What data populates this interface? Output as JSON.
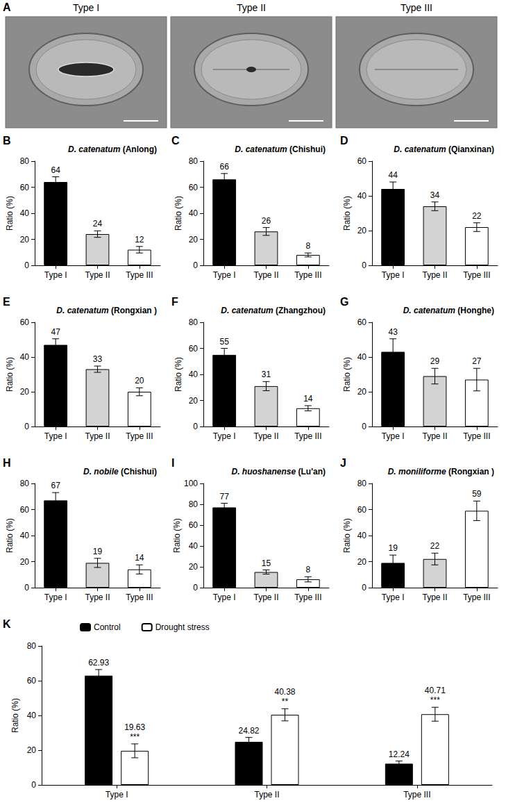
{
  "image_panel": {
    "panel": "A",
    "titles": [
      "Type I",
      "Type II",
      "Type III"
    ]
  },
  "chart_data": [
    {
      "panel": "B",
      "type": "bar",
      "title": "D. catenatum",
      "subtitle": "(Anlong)",
      "y_label": "Ratio (%)",
      "categories": [
        "Type I",
        "Type II",
        "Type III"
      ],
      "values": [
        64,
        24,
        12
      ],
      "errors": [
        4,
        2.5,
        2.5
      ],
      "colors": [
        "#000000",
        "#d3d3d3",
        "#ffffff"
      ],
      "ylim": [
        0,
        80
      ],
      "yticks": [
        0,
        20,
        40,
        60,
        80
      ],
      "data_labels": true,
      "grid": false
    },
    {
      "panel": "C",
      "type": "bar",
      "title": "D. catenatum",
      "subtitle": "(Chishui)",
      "y_label": "Ratio (%)",
      "categories": [
        "Type I",
        "Type II",
        "Type III"
      ],
      "values": [
        66,
        26,
        8
      ],
      "errors": [
        4.5,
        3,
        1.5
      ],
      "colors": [
        "#000000",
        "#d3d3d3",
        "#ffffff"
      ],
      "ylim": [
        0,
        80
      ],
      "yticks": [
        0,
        20,
        40,
        60,
        80
      ],
      "data_labels": true,
      "grid": false
    },
    {
      "panel": "D",
      "type": "bar",
      "title": "D. catenatum",
      "subtitle": "(Qianxinan)",
      "y_label": "Ratio (%)",
      "categories": [
        "Type I",
        "Type II",
        "Type III"
      ],
      "values": [
        44,
        34,
        22
      ],
      "errors": [
        4,
        2.5,
        2.5
      ],
      "colors": [
        "#000000",
        "#d3d3d3",
        "#ffffff"
      ],
      "ylim": [
        0,
        60
      ],
      "yticks": [
        0,
        20,
        40,
        60
      ],
      "data_labels": true,
      "grid": false
    },
    {
      "panel": "E",
      "type": "bar",
      "title": "D. catenatum",
      "subtitle": "(Rongxian )",
      "y_label": "Ratio (%)",
      "categories": [
        "Type I",
        "Type II",
        "Type III"
      ],
      "values": [
        47,
        33,
        20
      ],
      "errors": [
        3.5,
        1.8,
        2.3
      ],
      "colors": [
        "#000000",
        "#d3d3d3",
        "#ffffff"
      ],
      "ylim": [
        0,
        60
      ],
      "yticks": [
        0,
        20,
        40,
        60
      ],
      "data_labels": true,
      "grid": false
    },
    {
      "panel": "F",
      "type": "bar",
      "title": "D. catenatum",
      "subtitle": "(Zhangzhou)",
      "y_label": "Ratio (%)",
      "categories": [
        "Type I",
        "Type II",
        "Type III"
      ],
      "values": [
        55,
        31,
        14
      ],
      "errors": [
        5,
        3.5,
        2
      ],
      "colors": [
        "#000000",
        "#d3d3d3",
        "#ffffff"
      ],
      "ylim": [
        0,
        80
      ],
      "yticks": [
        0,
        20,
        40,
        60,
        80
      ],
      "data_labels": true,
      "grid": false
    },
    {
      "panel": "G",
      "type": "bar",
      "title": "D. catenatum",
      "subtitle": "(Honghe)",
      "y_label": "Ratio (%)",
      "categories": [
        "Type I",
        "Type II",
        "Type III"
      ],
      "values": [
        43,
        29,
        27
      ],
      "errors": [
        7.5,
        4.5,
        6.5
      ],
      "colors": [
        "#000000",
        "#d3d3d3",
        "#ffffff"
      ],
      "ylim": [
        0,
        60
      ],
      "yticks": [
        0,
        20,
        40,
        60
      ],
      "data_labels": true,
      "grid": false
    },
    {
      "panel": "H",
      "type": "bar",
      "title": "D. nobile",
      "subtitle": "(Chishui)",
      "y_label": "Ratio (%)",
      "categories": [
        "Type I",
        "Type II",
        "Type III"
      ],
      "values": [
        67,
        19,
        14
      ],
      "errors": [
        6,
        3.5,
        3.5
      ],
      "colors": [
        "#000000",
        "#d3d3d3",
        "#ffffff"
      ],
      "ylim": [
        0,
        80
      ],
      "yticks": [
        0,
        20,
        40,
        60,
        80
      ],
      "data_labels": true,
      "grid": false
    },
    {
      "panel": "I",
      "type": "bar",
      "title": "D. huoshanense",
      "subtitle": "(Lu'an)",
      "y_label": "Ratio (%)",
      "categories": [
        "Type I",
        "Type II",
        "Type III"
      ],
      "values": [
        77,
        15,
        8
      ],
      "errors": [
        4,
        2,
        2.5
      ],
      "colors": [
        "#000000",
        "#d3d3d3",
        "#ffffff"
      ],
      "ylim": [
        0,
        100
      ],
      "yticks": [
        0,
        20,
        40,
        60,
        80,
        100
      ],
      "data_labels": true,
      "grid": false
    },
    {
      "panel": "J",
      "type": "bar",
      "title": "D. moniliforme",
      "subtitle": "(Rongxian )",
      "y_label": "Ratio (%)",
      "categories": [
        "Type I",
        "Type II",
        "Type III"
      ],
      "values": [
        19,
        22,
        59
      ],
      "errors": [
        6,
        4.5,
        7.5
      ],
      "colors": [
        "#000000",
        "#d3d3d3",
        "#ffffff"
      ],
      "ylim": [
        0,
        80
      ],
      "yticks": [
        0,
        20,
        40,
        60,
        80
      ],
      "data_labels": true,
      "grid": false
    },
    {
      "panel": "K",
      "type": "bar",
      "y_label": "Ratio (%)",
      "categories": [
        "Type I",
        "Type II",
        "Type III"
      ],
      "series": [
        {
          "name": "Control",
          "color": "#000000",
          "values": [
            62.93,
            24.82,
            12.24
          ],
          "errors": [
            3.5,
            2.5,
            1.5
          ]
        },
        {
          "name": "Drought stress",
          "color": "#ffffff",
          "values": [
            19.63,
            40.38,
            40.71
          ],
          "errors": [
            4,
            3.5,
            4
          ],
          "significance": [
            "***",
            "**",
            "***"
          ]
        }
      ],
      "ylim": [
        0,
        80
      ],
      "yticks": [
        0,
        20,
        40,
        60,
        80
      ],
      "data_labels": true,
      "legend": "top-left",
      "grid": false
    }
  ]
}
